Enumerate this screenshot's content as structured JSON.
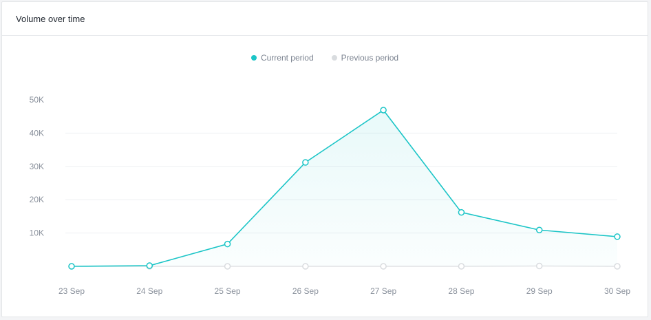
{
  "header": {
    "title": "Volume over time"
  },
  "legend": [
    {
      "label": "Current period",
      "color": "#1cc5c7"
    },
    {
      "label": "Previous period",
      "color": "#d9dcdf"
    }
  ],
  "chart_data": {
    "type": "area",
    "categories": [
      "23 Sep",
      "24 Sep",
      "25 Sep",
      "26 Sep",
      "27 Sep",
      "28 Sep",
      "29 Sep",
      "30 Sep"
    ],
    "series": [
      {
        "name": "Current period",
        "color": "#1cc5c7",
        "values": [
          0,
          200,
          6700,
          31200,
          46900,
          16200,
          10900,
          8900
        ]
      },
      {
        "name": "Previous period",
        "color": "#d9dcdf",
        "values": [
          0,
          0,
          0,
          0,
          0,
          0,
          100,
          0
        ]
      }
    ],
    "y_ticks": [
      "10K",
      "20K",
      "30K",
      "40K",
      "50K"
    ],
    "ylim": [
      0,
      50000
    ],
    "grid": true,
    "legend_position": "top-center"
  }
}
